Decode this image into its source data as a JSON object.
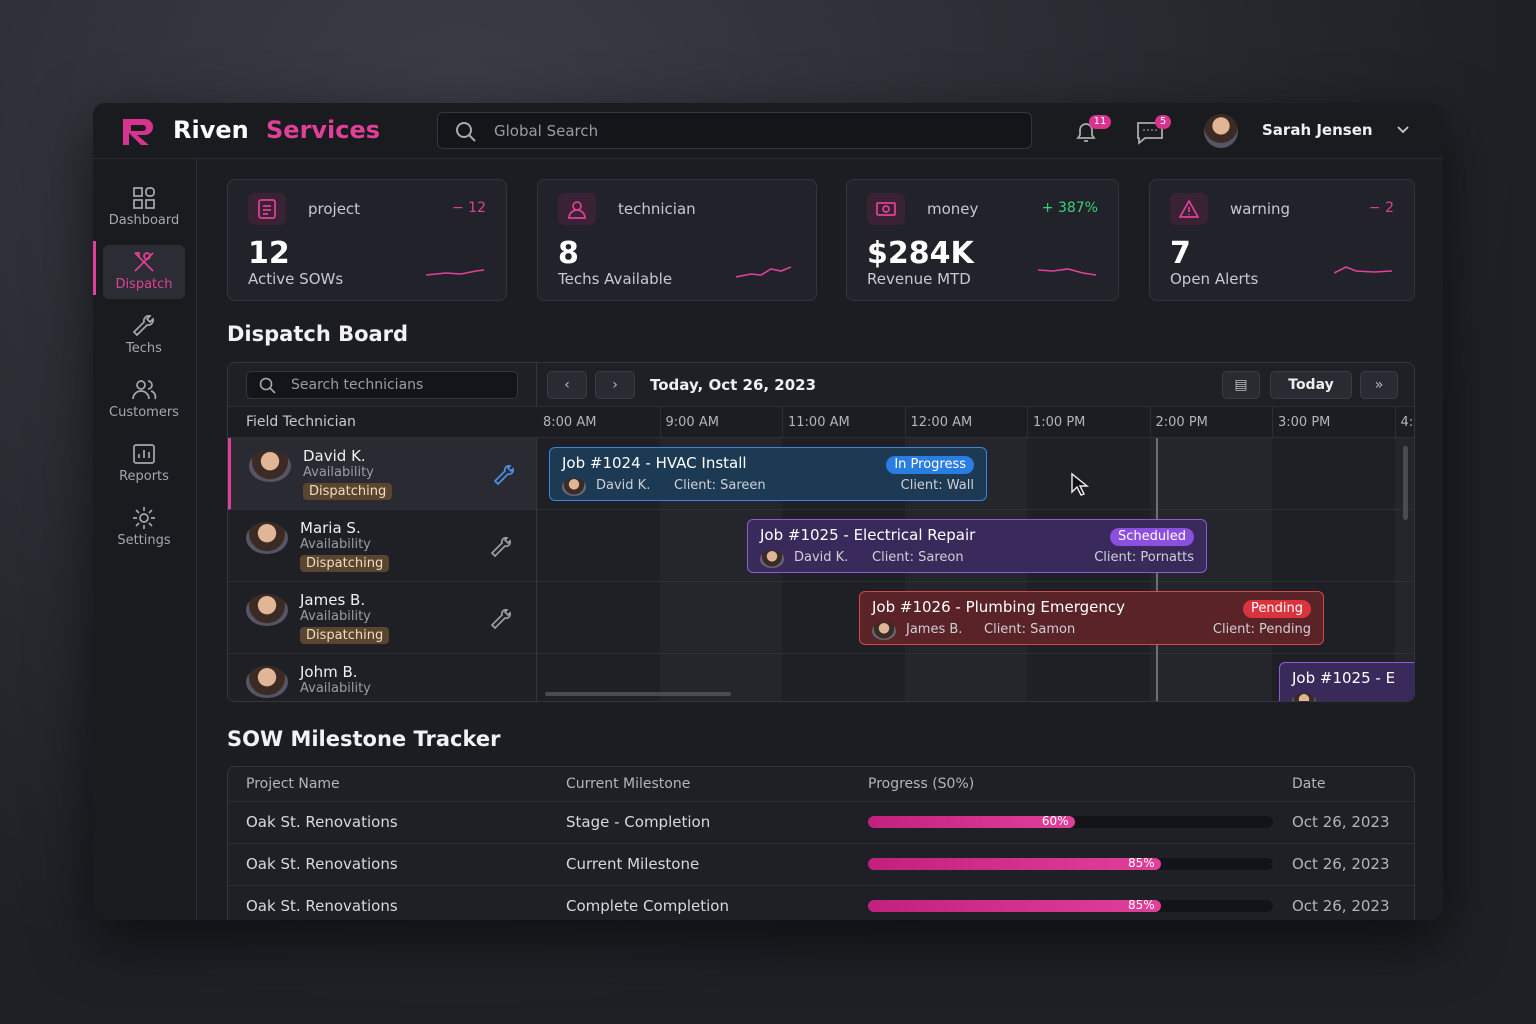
{
  "header": {
    "brand_first": "Riven",
    "brand_second": "Services",
    "search_placeholder": "Global Search",
    "notifications": "11",
    "messages": "5",
    "user": "Sarah Jensen"
  },
  "sidebar": [
    {
      "label": "Dashboard"
    },
    {
      "label": "Dispatch"
    },
    {
      "label": "Techs"
    },
    {
      "label": "Customers"
    },
    {
      "label": "Reports"
    },
    {
      "label": "Settings"
    }
  ],
  "kpis": [
    {
      "icon_label": "project",
      "change": "− 12",
      "value": "12",
      "caption": "Active SOWs"
    },
    {
      "icon_label": "technician",
      "change": "",
      "value": "8",
      "caption": "Techs Available"
    },
    {
      "icon_label": "money",
      "change": "+ 387%",
      "value": "$284K",
      "caption": "Revenue MTD"
    },
    {
      "icon_label": "warning",
      "change": "− 2",
      "value": "7",
      "caption": "Open Alerts"
    }
  ],
  "dispatch": {
    "title": "Dispatch Board",
    "search_placeholder": "Search technicians",
    "date": "Today, Oct 26, 2023",
    "today_button": "Today",
    "column_header": "Field Technician",
    "times": [
      "8:00 AM",
      "9:00 AM",
      "11:00 AM",
      "12:00 AM",
      "1:00 PM",
      "2:00 PM",
      "3:00 PM",
      "4:"
    ],
    "technicians": [
      {
        "name": "David K.",
        "availability": "Availability",
        "status": "Dispatching"
      },
      {
        "name": "Maria S.",
        "availability": "Availability",
        "status": "Dispatching"
      },
      {
        "name": "James B.",
        "availability": "Availability",
        "status": "Dispatching"
      },
      {
        "name": "Johm B.",
        "availability": "Availability"
      }
    ],
    "jobs": [
      {
        "title": "Job #1024 - HVAC Install",
        "status": "In Progress",
        "tech": "David K.",
        "client": "Client: Sareen",
        "client2": "Client: Wall"
      },
      {
        "title": "Job #1025 - Electrical Repair",
        "status": "Scheduled",
        "tech": "David K.",
        "client": "Client: Sareon",
        "client2": "Client: Pornatts"
      },
      {
        "title": "Job #1026 - Plumbing Emergency",
        "status": "Pending",
        "tech": "James B.",
        "client": "Client: Samon",
        "client2": "Client: Pending"
      },
      {
        "title": "Job #1025 - E"
      }
    ]
  },
  "milestones": {
    "title": "SOW Milestone Tracker",
    "columns": [
      "Project Name",
      "Current Milestone",
      "Progress (S0%)",
      "Date"
    ],
    "rows": [
      {
        "project": "Oak St. Renovations",
        "milestone": "Stage - Completion",
        "progress": {
          "value": 60,
          "label": "60%"
        },
        "date": "Oct 26, 2023"
      },
      {
        "project": "Oak St. Renovations",
        "milestone": "Current Milestone",
        "progress": {
          "value": 85,
          "label": "85%"
        },
        "date": "Oct 26, 2023"
      },
      {
        "project": "Oak St. Renovations",
        "milestone": "Complete Completion",
        "progress": {
          "value": 85,
          "label": "85%"
        },
        "date": "Oct 26, 2023"
      }
    ]
  }
}
